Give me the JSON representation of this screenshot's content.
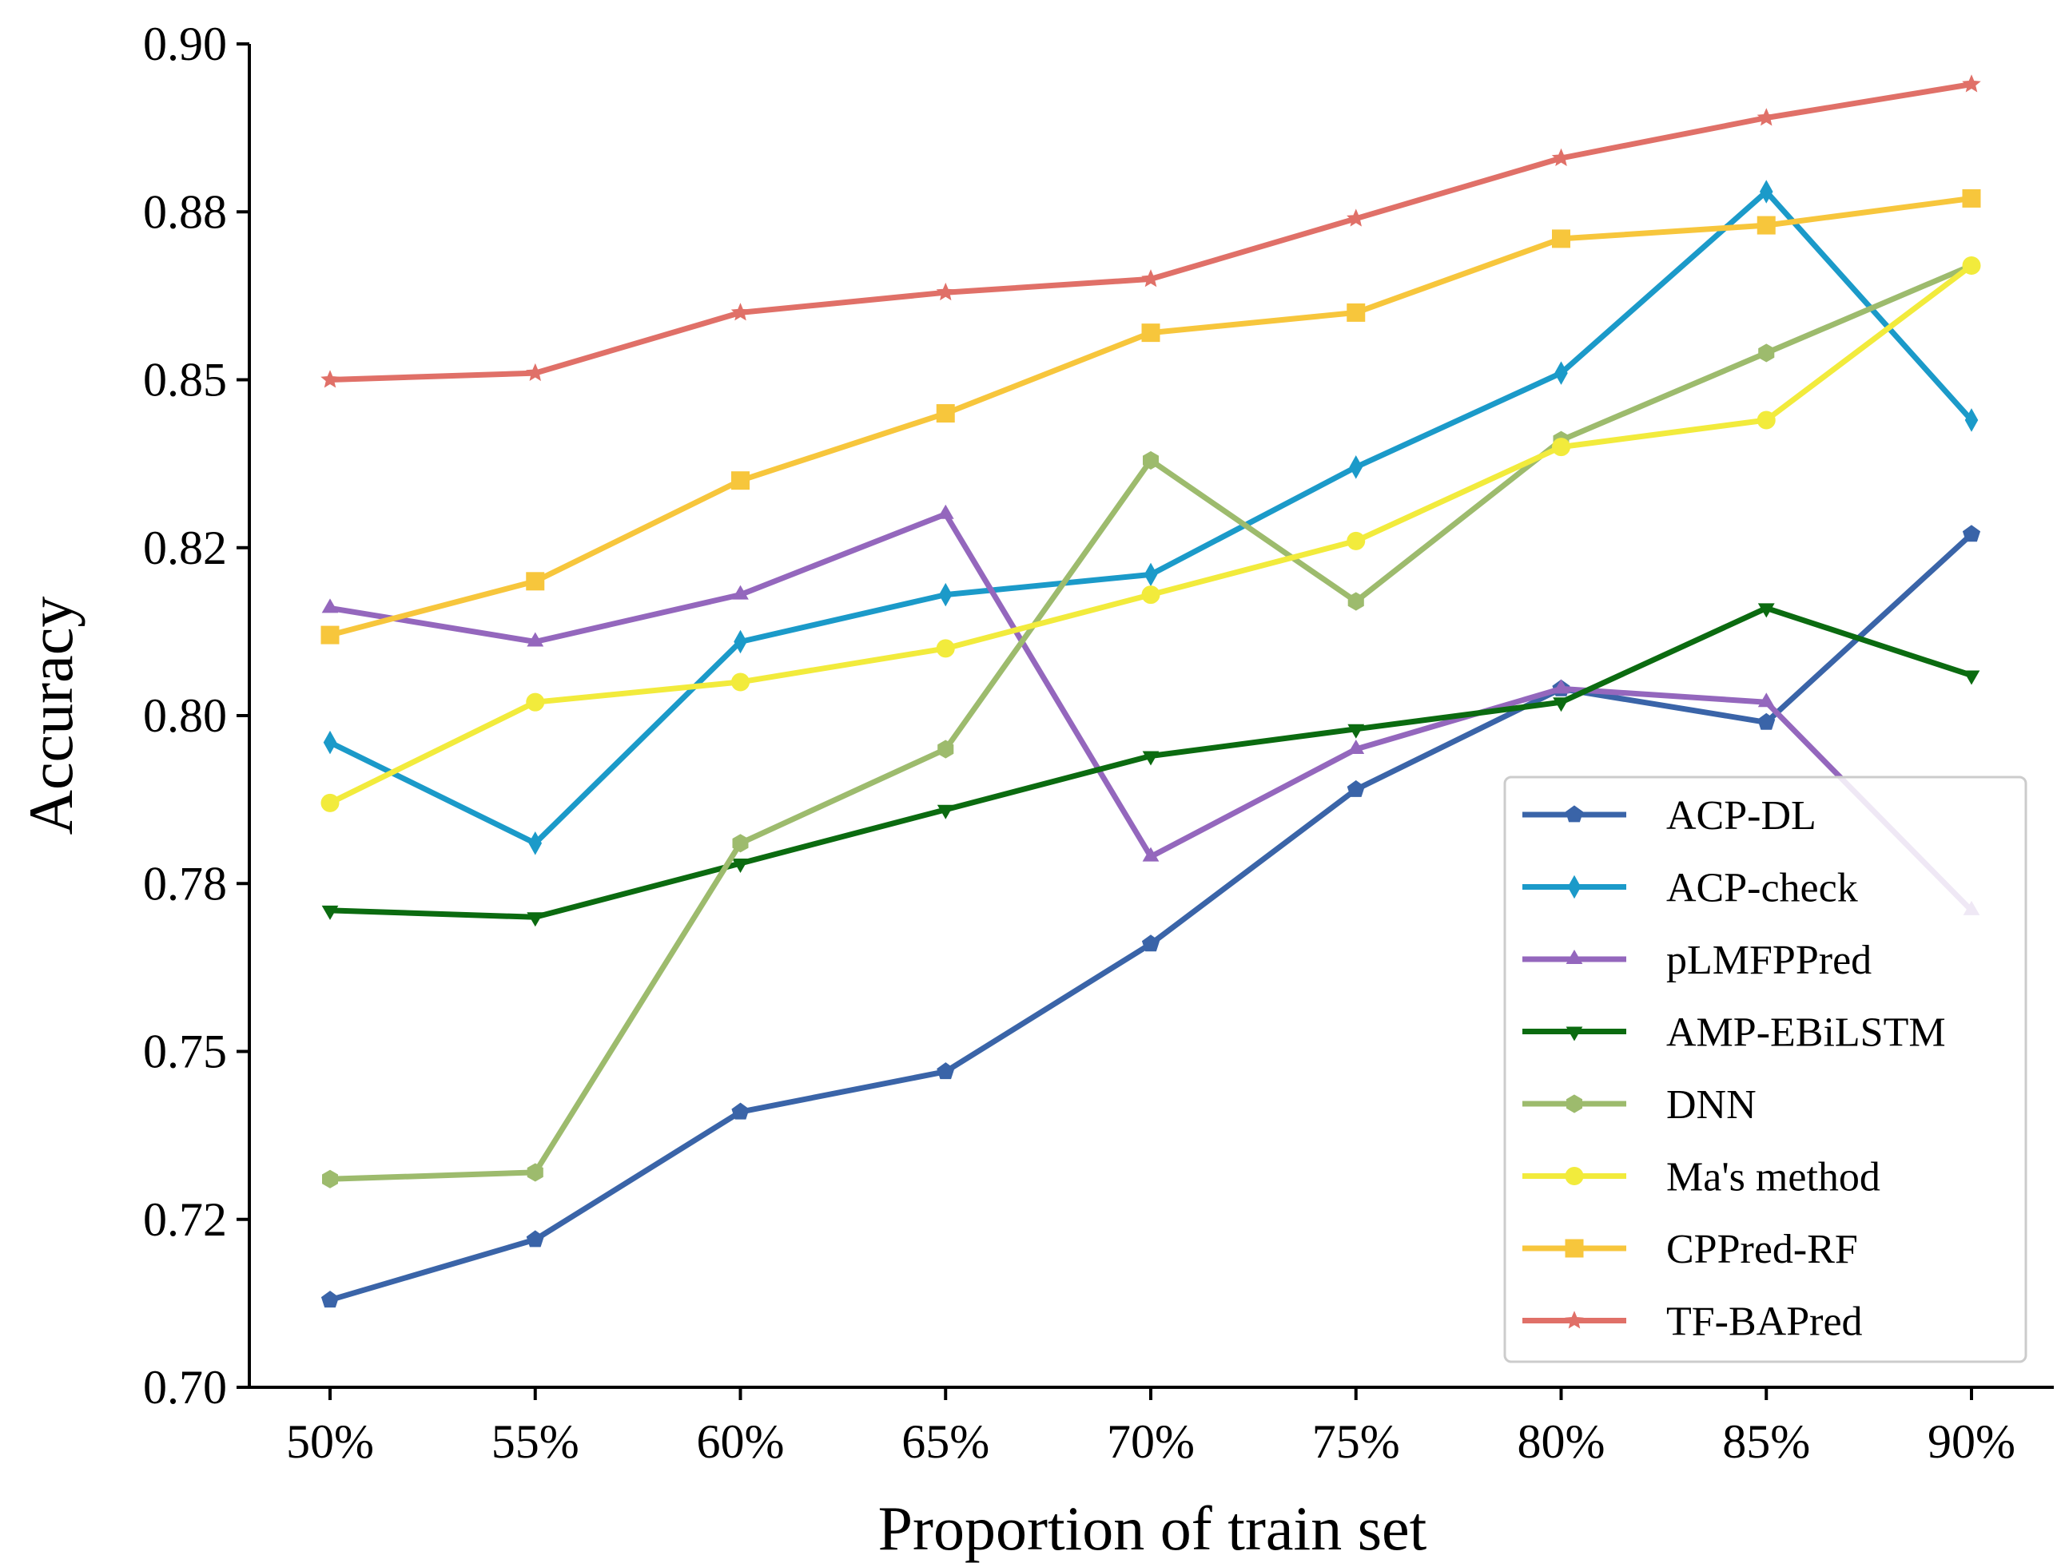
{
  "chart_data": {
    "type": "line",
    "title": "",
    "xlabel": "Proportion of train set",
    "ylabel": "Accuracy",
    "categories": [
      "50%",
      "55%",
      "60%",
      "65%",
      "70%",
      "75%",
      "80%",
      "85%",
      "90%"
    ],
    "ylim": [
      0.7,
      0.9
    ],
    "yticks": [
      0.7,
      0.725,
      0.75,
      0.775,
      0.8,
      0.825,
      0.85,
      0.875,
      0.9
    ],
    "ytick_labels": [
      "0.70",
      "0.72",
      "0.75",
      "0.78",
      "0.80",
      "0.82",
      "0.85",
      "0.88",
      "0.90"
    ],
    "grid": false,
    "legend_position": "lower-right",
    "series": [
      {
        "name": "ACP-DL",
        "color": "#3a64a8",
        "marker": "pentagon",
        "values": [
          0.713,
          0.722,
          0.741,
          0.747,
          0.766,
          0.789,
          0.804,
          0.799,
          0.827
        ]
      },
      {
        "name": "ACP-check",
        "color": "#1b9ac9",
        "marker": "diamond",
        "values": [
          0.796,
          0.781,
          0.811,
          0.818,
          0.821,
          0.837,
          0.851,
          0.878,
          0.844
        ]
      },
      {
        "name": "pLMFPPred",
        "color": "#9467bd",
        "marker": "triangle-up",
        "values": [
          0.816,
          0.811,
          0.818,
          0.83,
          0.779,
          0.795,
          0.804,
          0.802,
          0.771
        ]
      },
      {
        "name": "AMP-EBiLSTM",
        "color": "#0b6b10",
        "marker": "triangle-down",
        "values": [
          0.771,
          0.77,
          0.778,
          0.786,
          0.794,
          0.798,
          0.802,
          0.816,
          0.806
        ]
      },
      {
        "name": "DNN",
        "color": "#9dbb6d",
        "marker": "hexagon",
        "values": [
          0.731,
          0.732,
          0.781,
          0.795,
          0.838,
          0.817,
          0.841,
          0.854,
          0.867
        ]
      },
      {
        "name": "Ma's method",
        "color": "#f2eb3c",
        "marker": "circle",
        "values": [
          0.787,
          0.802,
          0.805,
          0.81,
          0.818,
          0.826,
          0.84,
          0.844,
          0.867
        ]
      },
      {
        "name": "CPPred-RF",
        "color": "#f7c63c",
        "marker": "square",
        "values": [
          0.812,
          0.82,
          0.835,
          0.845,
          0.857,
          0.86,
          0.871,
          0.873,
          0.877
        ]
      },
      {
        "name": "TF-BAPred",
        "color": "#e07068",
        "marker": "star",
        "values": [
          0.85,
          0.851,
          0.86,
          0.863,
          0.865,
          0.874,
          0.883,
          0.889,
          0.894
        ]
      }
    ]
  }
}
